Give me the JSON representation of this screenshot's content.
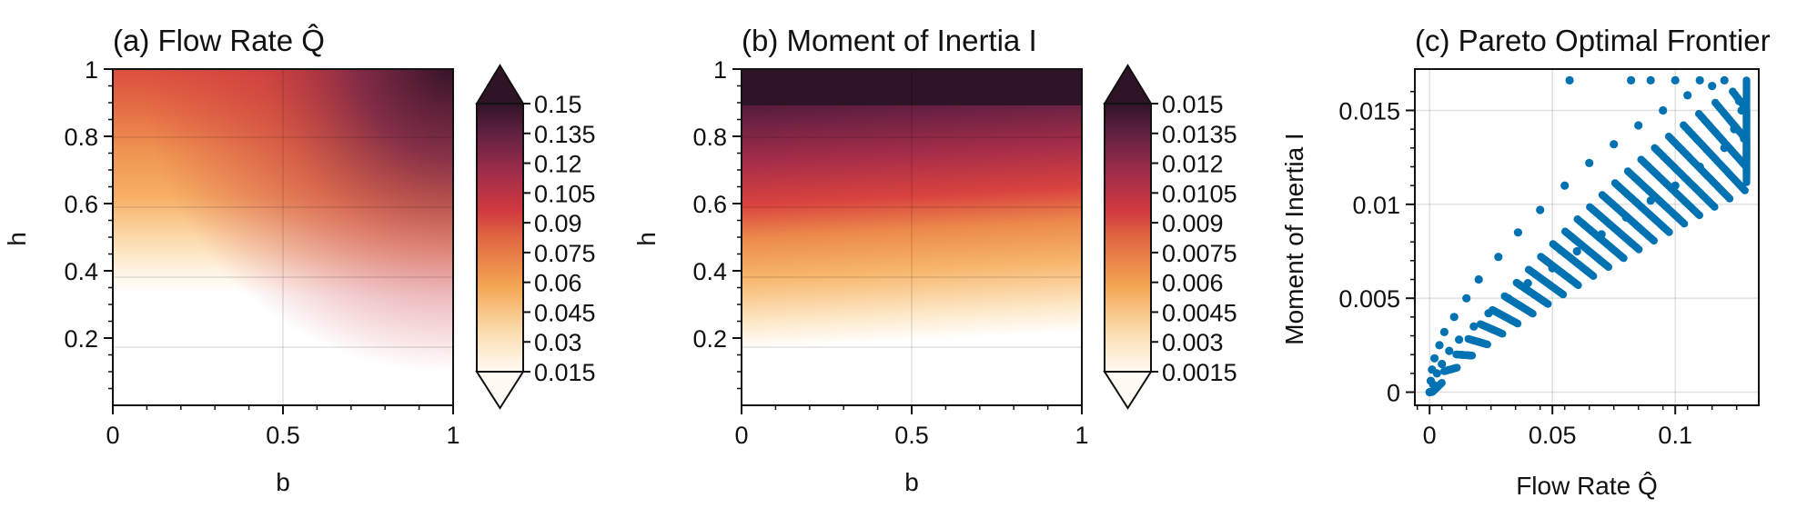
{
  "chart_data": [
    {
      "type": "heatmap",
      "title": "(a) Flow Rate Q̂",
      "xlabel": "b",
      "ylabel": "h",
      "xlim": [
        0,
        1
      ],
      "ylim": [
        0,
        1
      ],
      "xticks": [
        "0",
        "0.5",
        "1"
      ],
      "yticks": [
        "0.2",
        "0.4",
        "0.6",
        "0.8",
        "1"
      ],
      "colorbar": {
        "levels": [
          "0.015",
          "0.03",
          "0.045",
          "0.06",
          "0.075",
          "0.09",
          "0.105",
          "0.12",
          "0.135",
          "0.15"
        ],
        "min": 0.015,
        "max": 0.15,
        "extend": "both"
      },
      "grid": true
    },
    {
      "type": "heatmap",
      "title": "(b) Moment of Inertia I",
      "xlabel": "b",
      "ylabel": "h",
      "xlim": [
        0,
        1
      ],
      "ylim": [
        0,
        1
      ],
      "xticks": [
        "0",
        "0.5",
        "1"
      ],
      "yticks": [
        "0.2",
        "0.4",
        "0.6",
        "0.8",
        "1"
      ],
      "colorbar": {
        "levels": [
          "0.0015",
          "0.003",
          "0.0045",
          "0.006",
          "0.0075",
          "0.009",
          "0.0105",
          "0.012",
          "0.0135",
          "0.015"
        ],
        "min": 0.0015,
        "max": 0.015,
        "extend": "both"
      },
      "grid": true
    },
    {
      "type": "scatter",
      "title": "(c) Pareto Optimal Frontier",
      "xlabel": "Flow Rate Q̂",
      "ylabel": "Moment of Inertia I",
      "xlim": [
        -0.006,
        0.134
      ],
      "ylim": [
        -0.0007,
        0.0172
      ],
      "xticks": [
        "0",
        "0.05",
        "0.1"
      ],
      "xtick_values": [
        0,
        0.05,
        0.1
      ],
      "yticks": [
        "0",
        "0.005",
        "0.01",
        "0.015"
      ],
      "ytick_values": [
        0,
        0.005,
        0.01,
        0.015
      ],
      "point_color": "#0072b2",
      "grid": true,
      "points": [
        [
          0,
          0
        ],
        [
          0.0005,
          0.0006
        ],
        [
          0.001,
          0.0012
        ],
        [
          0.0015,
          0.0004
        ],
        [
          0.002,
          0.0018
        ],
        [
          0.003,
          0.001
        ],
        [
          0.004,
          0.0025
        ],
        [
          0.005,
          0.0015
        ],
        [
          0.006,
          0.0032
        ],
        [
          0.008,
          0.0022
        ],
        [
          0.01,
          0.004
        ],
        [
          0.012,
          0.0028
        ],
        [
          0.015,
          0.005
        ],
        [
          0.018,
          0.0035
        ],
        [
          0.02,
          0.006
        ],
        [
          0.024,
          0.0042
        ],
        [
          0.028,
          0.0072
        ],
        [
          0.032,
          0.005
        ],
        [
          0.036,
          0.0085
        ],
        [
          0.04,
          0.0058
        ],
        [
          0.045,
          0.0097
        ],
        [
          0.05,
          0.0066
        ],
        [
          0.055,
          0.011
        ],
        [
          0.06,
          0.0075
        ],
        [
          0.065,
          0.0122
        ],
        [
          0.07,
          0.0084
        ],
        [
          0.075,
          0.0132
        ],
        [
          0.08,
          0.0093
        ],
        [
          0.085,
          0.0142
        ],
        [
          0.09,
          0.0102
        ],
        [
          0.095,
          0.015
        ],
        [
          0.1,
          0.011
        ],
        [
          0.105,
          0.0158
        ],
        [
          0.11,
          0.012
        ],
        [
          0.115,
          0.0163
        ],
        [
          0.12,
          0.013
        ],
        [
          0.124,
          0.014
        ],
        [
          0.127,
          0.015
        ],
        [
          0.128,
          0.0135
        ],
        [
          0.126,
          0.0155
        ],
        [
          0.057,
          0.0166
        ],
        [
          0.082,
          0.0166
        ],
        [
          0.09,
          0.0166
        ],
        [
          0.1,
          0.0166
        ],
        [
          0.11,
          0.0166
        ],
        [
          0.12,
          0.0166
        ]
      ]
    }
  ]
}
